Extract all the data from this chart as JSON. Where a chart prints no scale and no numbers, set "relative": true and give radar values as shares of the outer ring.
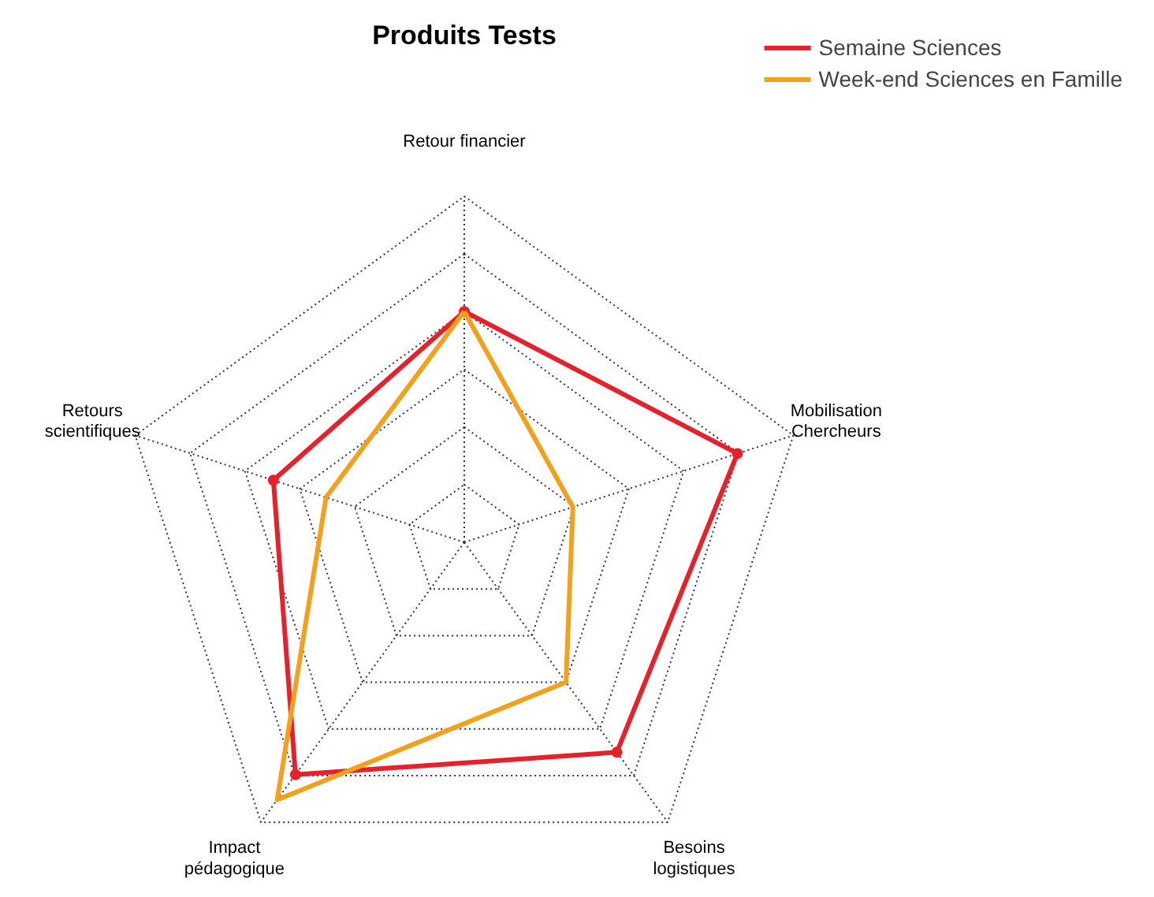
{
  "chart_data": {
    "type": "radar",
    "title": "Produits Tests",
    "relative": true,
    "grid": true,
    "legend": "top right",
    "categories": [
      "Retour financier",
      "Mobilisation Chercheurs",
      "Besoins logistiques",
      "Impact pédagogique",
      "Retours scientifiques"
    ],
    "series": [
      {
        "name": "Semaine Sciences",
        "color": "#e8202a",
        "marker": "circle",
        "values": [
          0.667,
          0.83,
          0.75,
          0.83,
          0.58
        ]
      },
      {
        "name": "Week-end Sciences en Famille",
        "color": "#f5a01a",
        "marker": "none",
        "values": [
          0.667,
          0.33,
          0.5,
          0.92,
          0.42
        ]
      }
    ]
  }
}
